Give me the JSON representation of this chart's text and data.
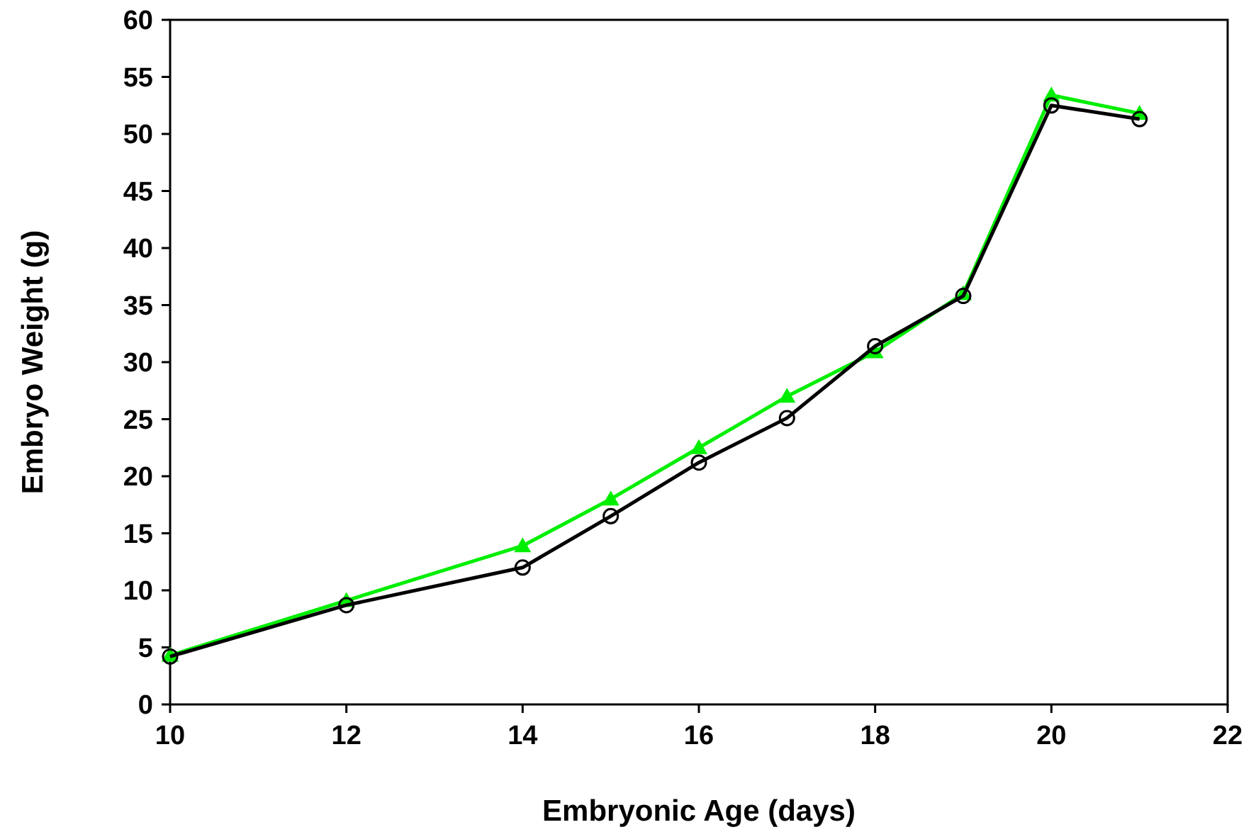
{
  "chart_data": {
    "type": "line",
    "xlabel": "Embryonic Age (days)",
    "ylabel": "Embryo Weight (g)",
    "x": [
      10,
      12,
      14,
      15,
      16,
      17,
      18,
      19,
      20,
      21
    ],
    "xlim": [
      10,
      22
    ],
    "xticks": [
      10,
      12,
      14,
      16,
      18,
      20,
      22
    ],
    "ylim": [
      0,
      60
    ],
    "yticks": [
      0,
      5,
      10,
      15,
      20,
      25,
      30,
      35,
      40,
      45,
      50,
      55,
      60
    ],
    "grid": false,
    "line_style": "solid",
    "series": [
      {
        "color": "#00ee00",
        "marker": "triangle",
        "values": [
          4.3,
          9.1,
          13.9,
          18.0,
          22.5,
          27.0,
          30.9,
          36.0,
          53.4,
          51.8
        ]
      },
      {
        "color": "#000000",
        "marker": "circle",
        "values": [
          4.2,
          8.7,
          12.0,
          16.5,
          21.2,
          25.1,
          31.4,
          35.8,
          52.5,
          51.3
        ]
      }
    ]
  }
}
